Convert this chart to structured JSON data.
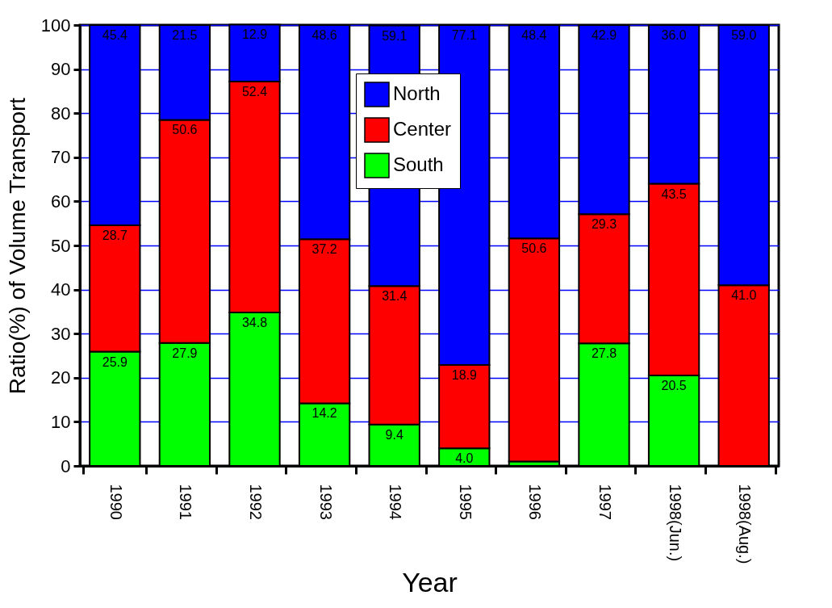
{
  "chart_data": {
    "type": "bar",
    "stacked": true,
    "xlabel": "Year",
    "ylabel": "Ratio(%) of Volume Transport",
    "categories": [
      "1990",
      "1991",
      "1992",
      "1993",
      "1994",
      "1995",
      "1996",
      "1997",
      "1998(Jun.)",
      "1998(Aug.)"
    ],
    "series": [
      {
        "name": "South",
        "color": "#00ff00",
        "values": [
          25.9,
          27.9,
          34.8,
          14.2,
          9.4,
          4.0,
          1.0,
          27.8,
          20.5,
          0
        ],
        "value_labels": [
          "25.9",
          "27.9",
          "34.8",
          "14.2",
          "9.4",
          "4.0",
          null,
          "27.8",
          "20.5",
          null
        ]
      },
      {
        "name": "Center",
        "color": "#ff0000",
        "values": [
          28.7,
          50.6,
          52.4,
          37.2,
          31.4,
          18.9,
          50.6,
          29.3,
          43.5,
          41.0
        ],
        "value_labels": [
          "28.7",
          "50.6",
          "52.4",
          "37.2",
          "31.4",
          "18.9",
          "50.6",
          "29.3",
          "43.5",
          "41.0"
        ]
      },
      {
        "name": "North",
        "color": "#0000ff",
        "values": [
          45.4,
          21.5,
          12.9,
          48.6,
          59.1,
          77.1,
          48.4,
          42.9,
          36.0,
          59.0
        ],
        "value_labels": [
          "45.4",
          "21.5",
          "12.9",
          "48.6",
          "59.1",
          "77.1",
          "48.4",
          "42.9",
          "36.0",
          "59.0"
        ]
      }
    ],
    "ylim": [
      0,
      100
    ],
    "yticks": [
      0,
      10,
      20,
      30,
      40,
      50,
      60,
      70,
      80,
      90,
      100
    ],
    "grid": "y",
    "legend": "top"
  }
}
